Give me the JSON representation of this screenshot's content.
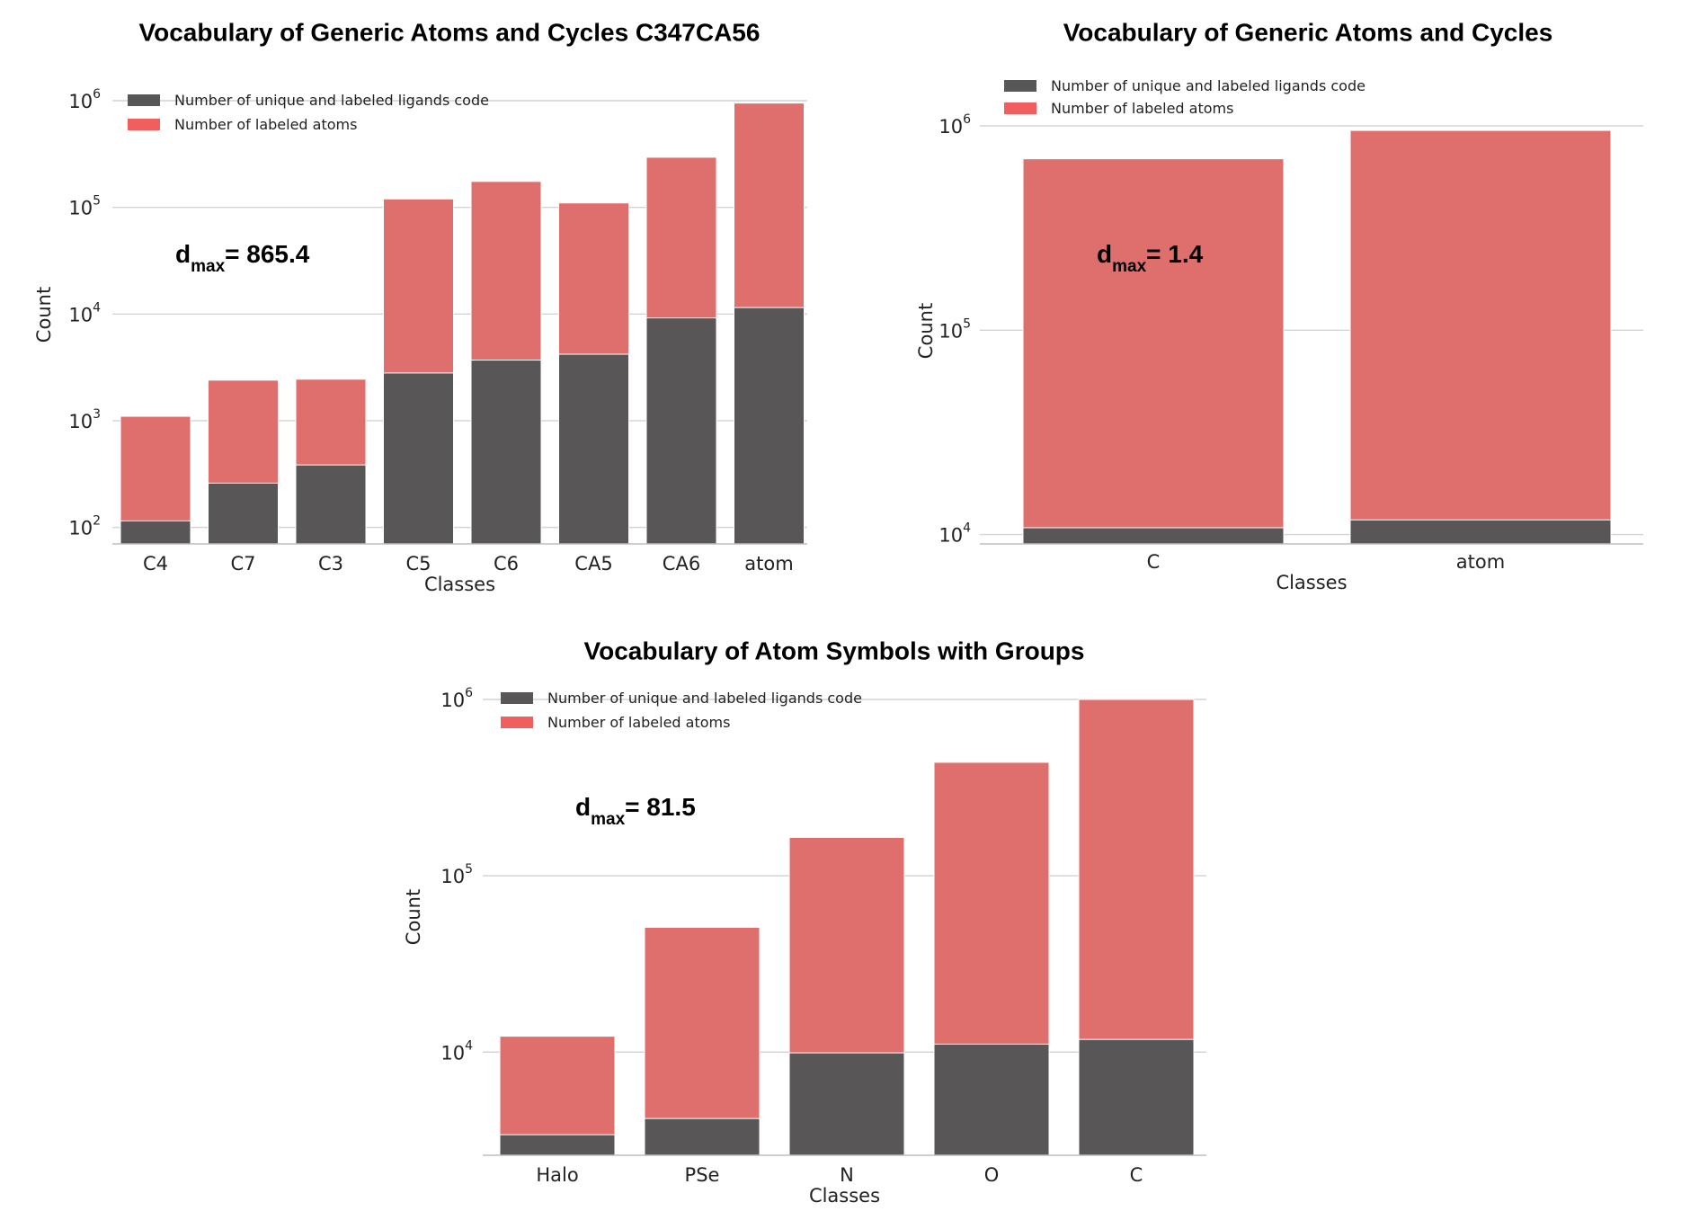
{
  "colors": {
    "ligands": "#595657",
    "atoms": "#df6f6d",
    "atoms_legend": "#f05f5e",
    "grid": "#d4d4d4"
  },
  "chart_data": [
    {
      "type": "bar",
      "stacked": true,
      "yscale": "log",
      "title": "Vocabulary of Generic Atoms and Cycles C347CA56",
      "xlabel": "Classes",
      "ylabel": "Count",
      "ylim": [
        70,
        1000000
      ],
      "yticks": [
        100,
        1000,
        10000,
        100000,
        1000000
      ],
      "categories": [
        "C4",
        "C7",
        "C3",
        "C5",
        "C6",
        "CA5",
        "CA6",
        "atom"
      ],
      "series": [
        {
          "name": "Number of unique and labeled ligands code",
          "values": [
            115,
            260,
            385,
            2800,
            3700,
            4200,
            9200,
            11500
          ]
        },
        {
          "name": "Number of labeled atoms",
          "values": [
            1100,
            2400,
            2450,
            120000,
            175000,
            110000,
            295000,
            950000
          ]
        }
      ],
      "annotation": {
        "base": "d",
        "sub": "max",
        "text": "= 865.4"
      },
      "legend": "top-left"
    },
    {
      "type": "bar",
      "stacked": true,
      "yscale": "log",
      "title": "Vocabulary of Generic Atoms and Cycles",
      "xlabel": "Classes",
      "ylabel": "Count",
      "ylim": [
        9000,
        1000000
      ],
      "yticks": [
        10000,
        100000,
        1000000
      ],
      "categories": [
        "C",
        "atom"
      ],
      "series": [
        {
          "name": "Number of unique and labeled ligands code",
          "values": [
            10800,
            11800
          ]
        },
        {
          "name": "Number of labeled atoms",
          "values": [
            690000,
            950000
          ]
        }
      ],
      "annotation": {
        "base": "d",
        "sub": "max",
        "text": "= 1.4"
      },
      "legend": "top-left"
    },
    {
      "type": "bar",
      "stacked": true,
      "yscale": "log",
      "title": "Vocabulary of Atom Symbols with Groups",
      "xlabel": "Classes",
      "ylabel": "Count",
      "ylim": [
        2600,
        1000000
      ],
      "yticks": [
        10000,
        100000,
        1000000
      ],
      "categories": [
        "Halo",
        "PSe",
        "N",
        "O",
        "C"
      ],
      "series": [
        {
          "name": "Number of unique and labeled ligands code",
          "values": [
            3400,
            4200,
            9900,
            11100,
            11800
          ]
        },
        {
          "name": "Number of labeled atoms",
          "values": [
            12300,
            51000,
            165000,
            440000,
            1000000
          ]
        }
      ],
      "annotation": {
        "base": "d",
        "sub": "max",
        "text": "= 81.5"
      },
      "legend": "top-left"
    }
  ]
}
